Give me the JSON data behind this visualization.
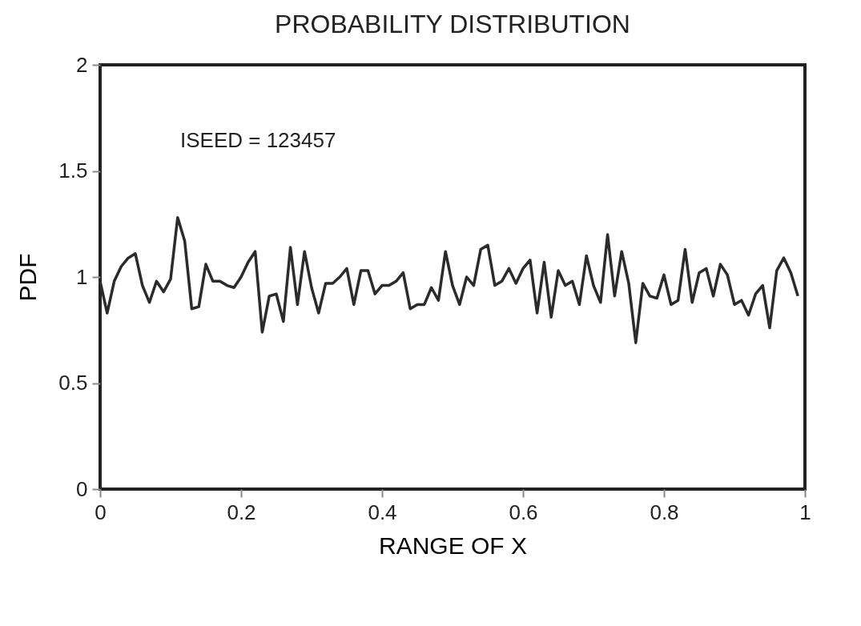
{
  "chart_data": {
    "type": "line",
    "title": "PROBABILITY DISTRIBUTION",
    "xlabel": "RANGE OF X",
    "ylabel": "PDF",
    "annotations": [
      "ISEED =  123457"
    ],
    "x": [
      0.0,
      0.01,
      0.02,
      0.03,
      0.04,
      0.05,
      0.06,
      0.07,
      0.08,
      0.09,
      0.1,
      0.11,
      0.12,
      0.13,
      0.14,
      0.15,
      0.16,
      0.17,
      0.18,
      0.19,
      0.2,
      0.21,
      0.22,
      0.23,
      0.24,
      0.25,
      0.26,
      0.27,
      0.28,
      0.29,
      0.3,
      0.31,
      0.32,
      0.33,
      0.34,
      0.35,
      0.36,
      0.37,
      0.38,
      0.39,
      0.4,
      0.41,
      0.42,
      0.43,
      0.44,
      0.45,
      0.46,
      0.47,
      0.48,
      0.49,
      0.5,
      0.51,
      0.52,
      0.53,
      0.54,
      0.55,
      0.56,
      0.57,
      0.58,
      0.59,
      0.6,
      0.61,
      0.62,
      0.63,
      0.64,
      0.65,
      0.66,
      0.67,
      0.68,
      0.69,
      0.7,
      0.71,
      0.72,
      0.73,
      0.74,
      0.75,
      0.76,
      0.77,
      0.78,
      0.79,
      0.8,
      0.81,
      0.82,
      0.83,
      0.84,
      0.85,
      0.86,
      0.87,
      0.88,
      0.89,
      0.9,
      0.91,
      0.92,
      0.93,
      0.94,
      0.95,
      0.96,
      0.97,
      0.98,
      0.99
    ],
    "series": [
      {
        "color": "#2b2b2b",
        "values": [
          0.98,
          0.83,
          0.98,
          1.05,
          1.09,
          1.11,
          0.96,
          0.88,
          0.98,
          0.93,
          0.99,
          1.28,
          1.17,
          0.85,
          0.86,
          1.06,
          0.98,
          0.98,
          0.96,
          0.95,
          1.0,
          1.07,
          1.12,
          0.74,
          0.91,
          0.92,
          0.79,
          1.14,
          0.87,
          1.12,
          0.95,
          0.83,
          0.97,
          0.97,
          1.0,
          1.04,
          0.87,
          1.03,
          1.03,
          0.92,
          0.96,
          0.96,
          0.98,
          1.02,
          0.85,
          0.87,
          0.87,
          0.95,
          0.89,
          1.12,
          0.96,
          0.87,
          1.0,
          0.96,
          1.13,
          1.15,
          0.96,
          0.98,
          1.04,
          0.97,
          1.04,
          1.08,
          0.83,
          1.07,
          0.81,
          1.03,
          0.96,
          0.98,
          0.87,
          1.1,
          0.96,
          0.88,
          1.2,
          0.91,
          1.12,
          0.97,
          0.69,
          0.97,
          0.91,
          0.9,
          1.01,
          0.87,
          0.89,
          1.13,
          0.88,
          1.02,
          1.04,
          0.91,
          1.06,
          1.01,
          0.87,
          0.89,
          0.82,
          0.92,
          0.96,
          0.76,
          1.03,
          1.09,
          1.02,
          0.91
        ]
      }
    ],
    "xlim": [
      0,
      1
    ],
    "ylim": [
      0,
      2
    ],
    "xticks": [
      0,
      0.2,
      0.4,
      0.6,
      0.8,
      1
    ],
    "yticks": [
      0,
      0.5,
      1,
      1.5,
      2
    ],
    "grid": false,
    "marker": "none",
    "line_style": "solid"
  }
}
